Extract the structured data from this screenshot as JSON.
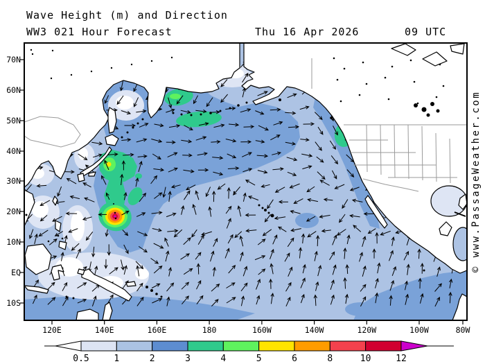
{
  "header": {
    "title": "Wave Height (m) and Direction",
    "subtitle": "WW3 021 Hour Forecast",
    "date": "Thu 16 Apr 2026",
    "time": "09 UTC"
  },
  "watermark": "© www.PassageWeather.com",
  "axes": {
    "lat_labels": [
      "70N",
      "60N",
      "50N",
      "40N",
      "30N",
      "20N",
      "10N",
      "EQ",
      "10S"
    ],
    "lon_labels": [
      "120E",
      "140E",
      "160E",
      "180",
      "160W",
      "140W",
      "120W",
      "100W",
      "80W"
    ]
  },
  "colorbar": {
    "tick_labels": [
      "0.5",
      "1",
      "2",
      "3",
      "4",
      "5",
      "6",
      "8",
      "10",
      "12"
    ],
    "segment_colors": [
      "#dde4f3",
      "#abc3e3",
      "#5d8dd0",
      "#2fca8c",
      "#5ff25e",
      "#ffe400",
      "#ff9c00",
      "#f4414d",
      "#d10030"
    ],
    "underflow_color": "#ffffff",
    "overflow_color": "#cc00cc"
  },
  "colors": {
    "ocean_1_2m": "#adc3e4",
    "ocean_2_3m": "#7aa2d8",
    "ocean_0_1m": "#dee5f4",
    "calm_white": "#ffffff",
    "wave_3_4m": "#2fca8c",
    "wave_4_5m": "#5ff25e",
    "wave_5_6m": "#ffe400",
    "wave_6_8m": "#ff9c00",
    "wave_8_10m": "#f4414d",
    "wave_10_12m": "#d10030",
    "wave_over_12m": "#cc00cc",
    "land": "#ffffff",
    "coastline": "#000000",
    "political_border": "#9a9a9a",
    "watermark_green": "#3c9c3c",
    "arrow_black": "#000000"
  },
  "chart_data": {
    "type": "heatmap",
    "title": "Wave Height (m) and Direction",
    "model_run": "WW3 021 Hour Forecast",
    "valid_time": "Thu 16 Apr 2026 09 UTC",
    "units": "m",
    "region": "Pacific Ocean",
    "lon_ticks": [
      "120E",
      "140E",
      "160E",
      "180",
      "160W",
      "140W",
      "120W",
      "100W",
      "80W"
    ],
    "lat_ticks": [
      "70N",
      "60N",
      "50N",
      "40N",
      "30N",
      "20N",
      "10N",
      "EQ",
      "10S"
    ],
    "colorbar_ticks": [
      0.5,
      1,
      2,
      3,
      4,
      5,
      6,
      8,
      10,
      12
    ],
    "features": [
      {
        "feature": "tropical cyclone swell maximum",
        "approx_position": "18N 144E",
        "peak_wave_height_m": 12
      },
      {
        "feature": "storm swell SE of Kamchatka / Kuril Islands",
        "approx_position": "51N 163E",
        "wave_height_m": 4.5
      },
      {
        "feature": "swell patch in western Bering Sea",
        "approx_position": "53N 168E",
        "wave_height_m": 3.5
      },
      {
        "feature": "swell east of Japan with 5-6 m core",
        "approx_position": "34N 140E",
        "wave_height_m": 5.5
      },
      {
        "feature": "swell off US West Coast",
        "approx_position": "41N 128W",
        "wave_height_m": 3.5
      },
      {
        "feature": "southern swell band south of 10S",
        "wave_height_m": 2.5
      },
      {
        "feature": "North Pacific background",
        "wave_height_m": 2.5
      },
      {
        "feature": "tropical / eastern Pacific background",
        "wave_height_m": 1.5
      },
      {
        "feature": "sheltered seas (Okhotsk, Yellow Sea, Indonesian seas)",
        "wave_height_m": 0.5
      }
    ]
  }
}
